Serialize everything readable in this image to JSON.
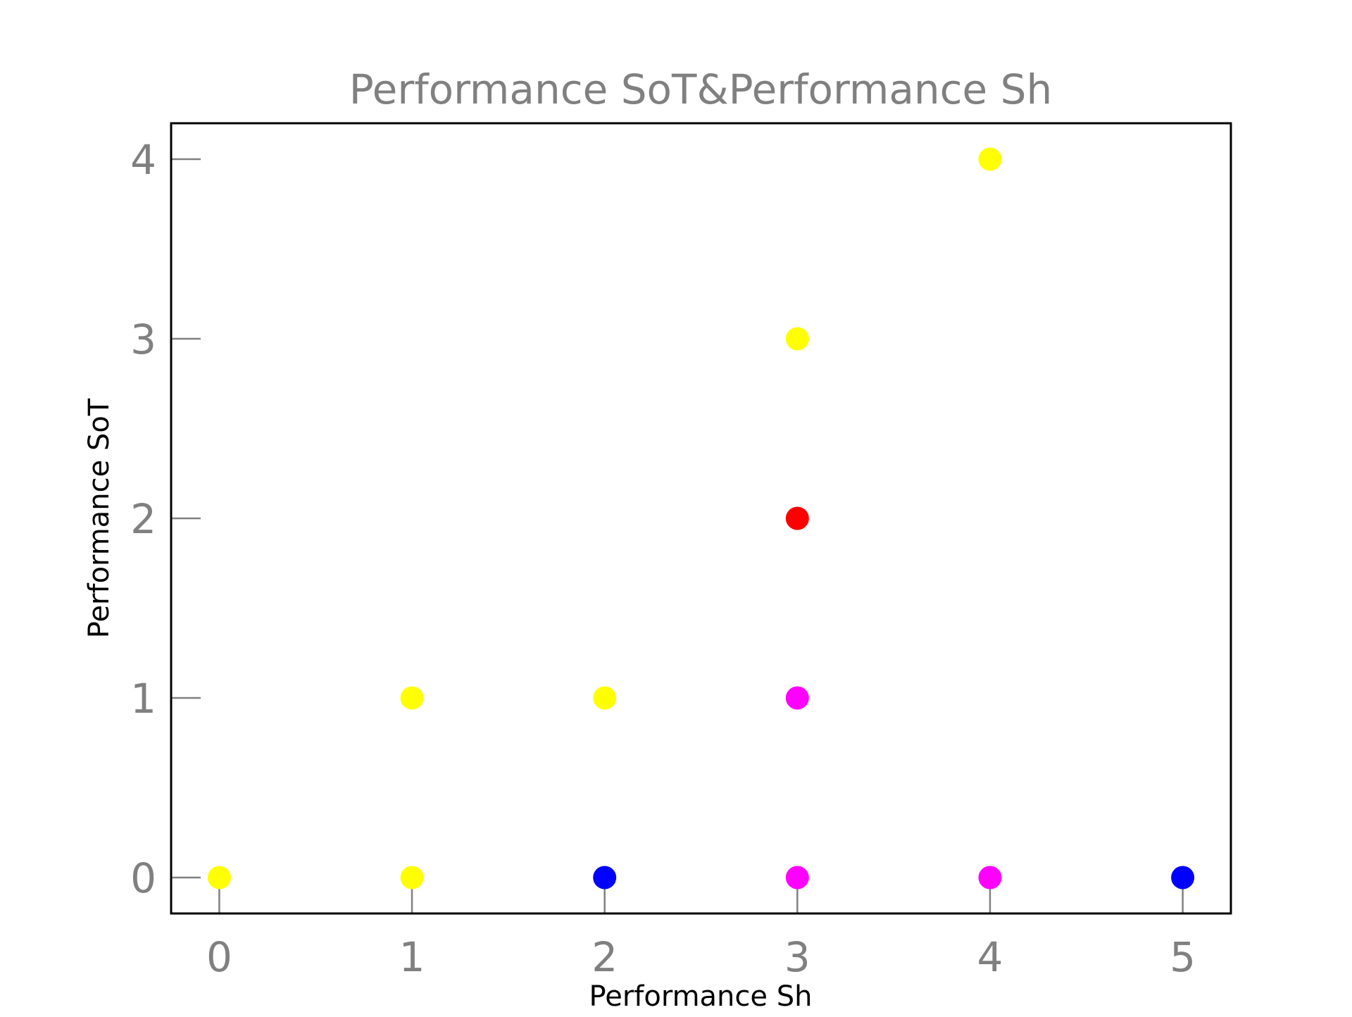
{
  "chart_data": {
    "type": "scatter",
    "title": "Performance SoT&Performance Sh",
    "xlabel": "Performance Sh",
    "ylabel": "Performance SoT",
    "xlim": [
      -0.25,
      5.25
    ],
    "ylim": [
      -0.2,
      4.2
    ],
    "xticks": [
      0,
      1,
      2,
      3,
      4,
      5
    ],
    "yticks": [
      0,
      1,
      2,
      3,
      4
    ],
    "grid": false,
    "legend": "none",
    "colors": {
      "title": "#808080",
      "tick_label": "#808080",
      "axis_label": "#000000",
      "frame": "#000000",
      "tick": "#808080"
    },
    "points": [
      {
        "x": 0,
        "y": 0,
        "color": "#ffff00"
      },
      {
        "x": 1,
        "y": 0,
        "color": "#ffff00"
      },
      {
        "x": 1,
        "y": 1,
        "color": "#ffff00"
      },
      {
        "x": 2,
        "y": 1,
        "color": "#ffff00"
      },
      {
        "x": 2,
        "y": 0,
        "color": "#0000ff"
      },
      {
        "x": 3,
        "y": 0,
        "color": "#ff00ff"
      },
      {
        "x": 3,
        "y": 1,
        "color": "#ff00ff"
      },
      {
        "x": 3,
        "y": 2,
        "color": "#ff0000"
      },
      {
        "x": 3,
        "y": 3,
        "color": "#ffff00"
      },
      {
        "x": 4,
        "y": 4,
        "color": "#ffff00"
      },
      {
        "x": 4,
        "y": 0,
        "color": "#ff00ff"
      },
      {
        "x": 5,
        "y": 0,
        "color": "#0000ff"
      }
    ]
  }
}
